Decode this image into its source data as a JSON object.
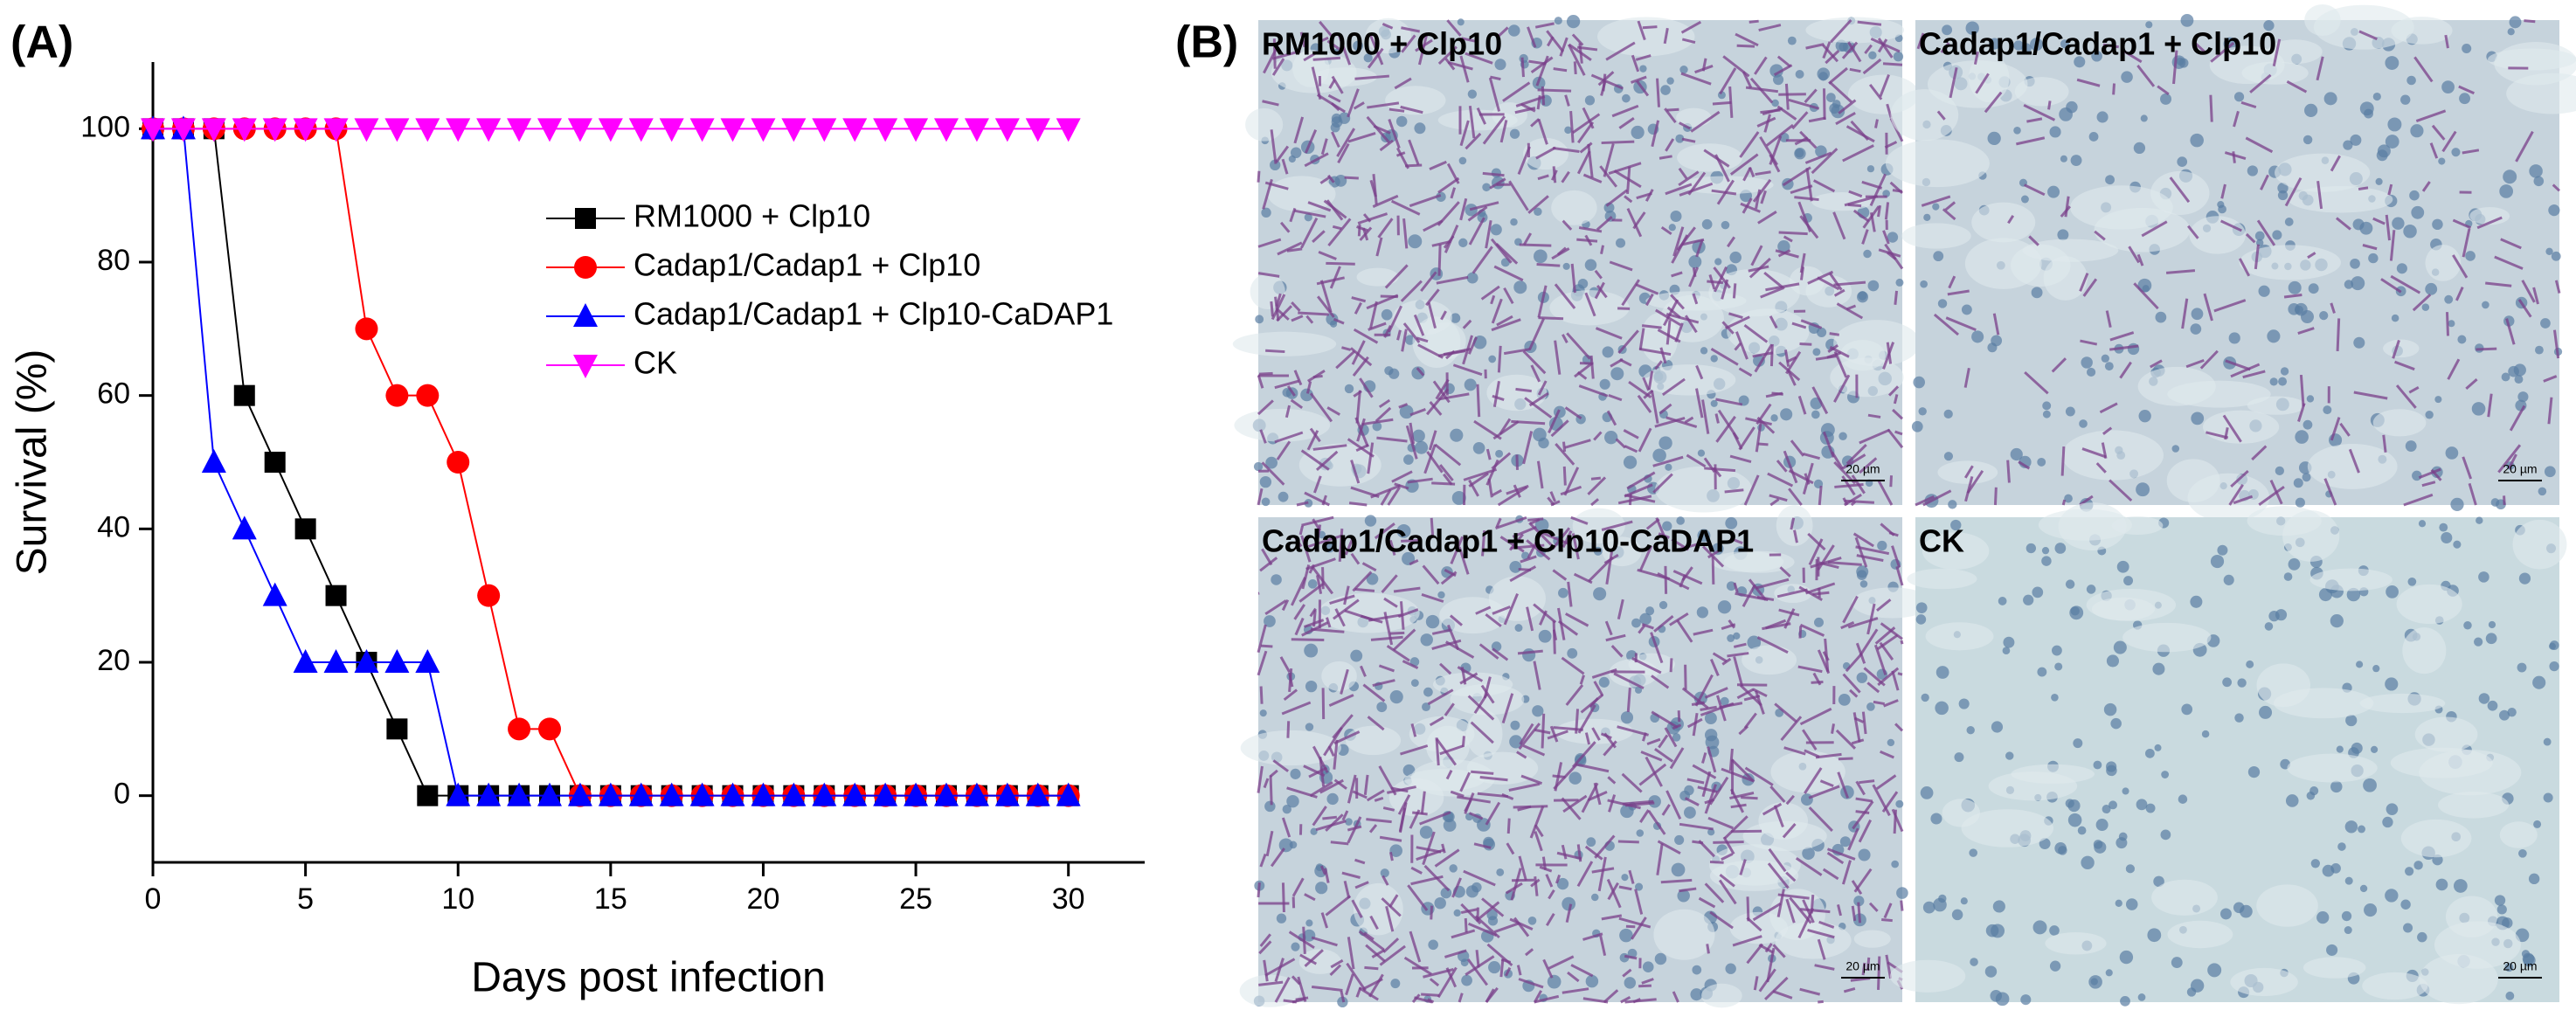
{
  "panel_labels": [
    "(A)",
    "(B)"
  ],
  "chart_data": {
    "type": "line",
    "x_label": "Days post infection",
    "y_label": "Survival (%)",
    "x": [
      0,
      1,
      2,
      3,
      4,
      5,
      6,
      7,
      8,
      9,
      10,
      11,
      12,
      13,
      14,
      15,
      16,
      17,
      18,
      19,
      20,
      21,
      22,
      23,
      24,
      25,
      26,
      27,
      28,
      29,
      30
    ],
    "xlim": [
      0,
      32.5
    ],
    "ylim": [
      -10,
      110
    ],
    "xticks": [
      0,
      5,
      10,
      15,
      20,
      25,
      30
    ],
    "yticks": [
      0,
      20,
      40,
      60,
      80,
      100
    ],
    "series": [
      {
        "name": "RM1000 + Clp10",
        "color": "#000000",
        "marker": "square",
        "values": [
          100,
          100,
          100,
          60,
          50,
          40,
          30,
          20,
          10,
          0,
          0,
          0,
          0,
          0,
          0,
          0,
          0,
          0,
          0,
          0,
          0,
          0,
          0,
          0,
          0,
          0,
          0,
          0,
          0,
          0,
          0
        ]
      },
      {
        "name": "Cadap1/Cadap1 + Clp10",
        "color": "#ff0000",
        "marker": "circle",
        "values": [
          100,
          100,
          100,
          100,
          100,
          100,
          100,
          70,
          60,
          60,
          50,
          30,
          10,
          10,
          0,
          0,
          0,
          0,
          0,
          0,
          0,
          0,
          0,
          0,
          0,
          0,
          0,
          0,
          0,
          0,
          0
        ]
      },
      {
        "name": "Cadap1/Cadap1 + Clp10-CaDAP1",
        "color": "#0000ff",
        "marker": "triangle-up",
        "values": [
          100,
          100,
          50,
          40,
          30,
          20,
          20,
          20,
          20,
          20,
          0,
          0,
          0,
          0,
          0,
          0,
          0,
          0,
          0,
          0,
          0,
          0,
          0,
          0,
          0,
          0,
          0,
          0,
          0,
          0,
          0
        ]
      },
      {
        "name": "CK",
        "color": "#ff00ff",
        "marker": "triangle-down",
        "values": [
          100,
          100,
          100,
          100,
          100,
          100,
          100,
          100,
          100,
          100,
          100,
          100,
          100,
          100,
          100,
          100,
          100,
          100,
          100,
          100,
          100,
          100,
          100,
          100,
          100,
          100,
          100,
          100,
          100,
          100,
          100
        ]
      }
    ]
  },
  "images": [
    {
      "caption": "RM1000 + Clp10",
      "scale_bar": "20 µm",
      "infected": true
    },
    {
      "caption": "Cadap1/Cadap1 + Clp10",
      "scale_bar": "20 µm",
      "infected": true
    },
    {
      "caption": "Cadap1/Cadap1 + Clp10-CaDAP1",
      "scale_bar": "20 µm",
      "infected": true
    },
    {
      "caption": "CK",
      "scale_bar": "20 µm",
      "infected": false
    }
  ]
}
